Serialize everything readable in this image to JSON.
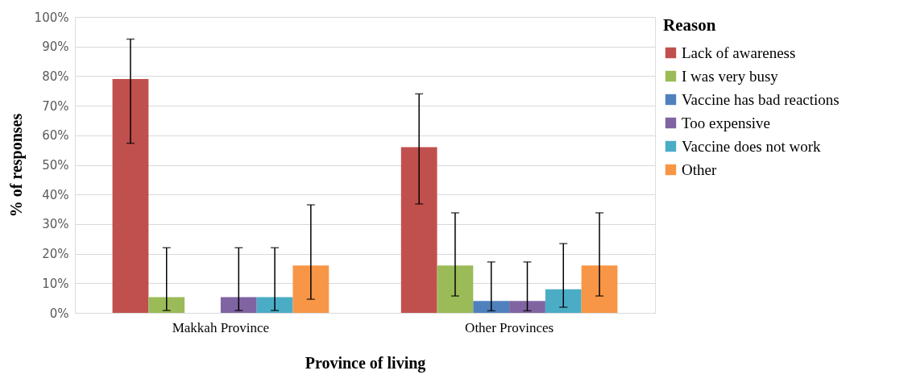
{
  "chart_data": {
    "type": "bar",
    "xlabel": "Province of living",
    "ylabel": "% of responses",
    "legend_title": "Reason",
    "categories": [
      "Makkah Province",
      "Other Provinces"
    ],
    "series": [
      {
        "name": "Lack of awareness",
        "color": "#c0504d",
        "values": [
          79,
          56
        ],
        "errors": [
          [
            57.3,
            92.5
          ],
          [
            36.8,
            74
          ]
        ]
      },
      {
        "name": "I was very busy",
        "color": "#9bbb59",
        "values": [
          5.3,
          16
        ],
        "errors": [
          [
            0.8,
            22
          ],
          [
            5.7,
            33.8
          ]
        ]
      },
      {
        "name": "Vaccine has bad reactions",
        "color": "#4f81bd",
        "values": [
          0,
          4
        ],
        "errors": [
          null,
          [
            0.7,
            17.2
          ]
        ]
      },
      {
        "name": "Too expensive",
        "color": "#8064a2",
        "values": [
          5.3,
          4
        ],
        "errors": [
          [
            0.8,
            22
          ],
          [
            0.7,
            17.2
          ]
        ]
      },
      {
        "name": "Vaccine does not work",
        "color": "#4bacc6",
        "values": [
          5.3,
          8
        ],
        "errors": [
          [
            0.8,
            22
          ],
          [
            1.9,
            23.4
          ]
        ]
      },
      {
        "name": "Other",
        "color": "#f79646",
        "values": [
          16,
          16
        ],
        "errors": [
          [
            4.6,
            36.5
          ],
          [
            5.7,
            33.8
          ]
        ]
      }
    ],
    "ylim": [
      0,
      100
    ],
    "yticks": [
      {
        "value": 0,
        "label": "0%"
      },
      {
        "value": 10,
        "label": "10%"
      },
      {
        "value": 20,
        "label": "20%"
      },
      {
        "value": 30,
        "label": "30%"
      },
      {
        "value": 40,
        "label": "40%"
      },
      {
        "value": 50,
        "label": "50%"
      },
      {
        "value": 60,
        "label": "60%"
      },
      {
        "value": 70,
        "label": "70%"
      },
      {
        "value": 80,
        "label": "80%"
      },
      {
        "value": 90,
        "label": "90%"
      },
      {
        "value": 100,
        "label": "100%"
      }
    ],
    "grid": "y",
    "legend": "right"
  }
}
